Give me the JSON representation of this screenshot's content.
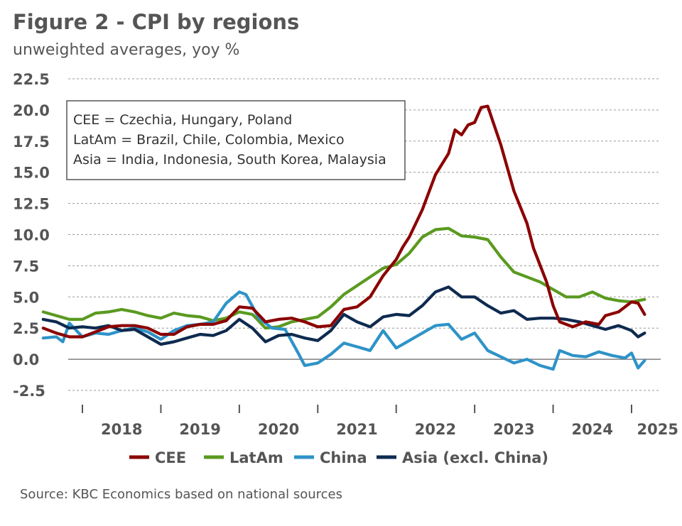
{
  "title": "Figure 2 - CPI by regions",
  "subtitle": "unweighted averages, yoy %",
  "source": "Source: KBC Economics based on national sources",
  "note_lines": [
    "CEE = Czechia, Hungary, Poland",
    "LatAm = Brazil, Chile, Colombia, Mexico",
    "Asia = India, Indonesia, South Korea, Malaysia"
  ],
  "chart_data": {
    "type": "line",
    "title": "Figure 2 - CPI by regions",
    "subtitle": "unweighted averages, yoy %",
    "ylim": [
      -2.5,
      22.5
    ],
    "yticks": [
      -2.5,
      0.0,
      2.5,
      5.0,
      7.5,
      10.0,
      12.5,
      15.0,
      17.5,
      20.0,
      22.5
    ],
    "ytick_labels": [
      "-2.5",
      "0.0",
      "2.5",
      "5.0",
      "7.5",
      "10.0",
      "12.5",
      "15.0",
      "17.5",
      "20.0",
      "22.5"
    ],
    "x_start": "2017-07",
    "x_end": "2025-01",
    "year_labels": [
      "2018",
      "2019",
      "2020",
      "2021",
      "2022",
      "2023",
      "2024",
      "2025"
    ],
    "grid": "horizontal",
    "legend": "bottom",
    "series": [
      {
        "name": "CEE",
        "color": "#8b0000",
        "points": [
          [
            "2017-07",
            2.5
          ],
          [
            "2017-09",
            2.1
          ],
          [
            "2017-11",
            1.8
          ],
          [
            "2018-01",
            1.8
          ],
          [
            "2018-03",
            2.2
          ],
          [
            "2018-05",
            2.6
          ],
          [
            "2018-07",
            2.7
          ],
          [
            "2018-09",
            2.7
          ],
          [
            "2018-11",
            2.5
          ],
          [
            "2019-01",
            2.0
          ],
          [
            "2019-03",
            2.0
          ],
          [
            "2019-05",
            2.6
          ],
          [
            "2019-07",
            2.8
          ],
          [
            "2019-09",
            2.8
          ],
          [
            "2019-11",
            3.1
          ],
          [
            "2020-01",
            4.2
          ],
          [
            "2020-03",
            4.1
          ],
          [
            "2020-05",
            3.0
          ],
          [
            "2020-07",
            3.2
          ],
          [
            "2020-09",
            3.3
          ],
          [
            "2020-11",
            3.0
          ],
          [
            "2021-01",
            2.6
          ],
          [
            "2021-03",
            2.7
          ],
          [
            "2021-05",
            4.0
          ],
          [
            "2021-07",
            4.2
          ],
          [
            "2021-09",
            5.0
          ],
          [
            "2021-11",
            6.7
          ],
          [
            "2022-01",
            8.0
          ],
          [
            "2022-02",
            9.0
          ],
          [
            "2022-03",
            9.8
          ],
          [
            "2022-05",
            12.0
          ],
          [
            "2022-07",
            14.8
          ],
          [
            "2022-09",
            16.5
          ],
          [
            "2022-10",
            18.4
          ],
          [
            "2022-11",
            18.0
          ],
          [
            "2022-12",
            18.8
          ],
          [
            "2023-01",
            19.0
          ],
          [
            "2023-02",
            20.2
          ],
          [
            "2023-03",
            20.3
          ],
          [
            "2023-05",
            17.2
          ],
          [
            "2023-07",
            13.5
          ],
          [
            "2023-09",
            10.9
          ],
          [
            "2023-10",
            8.9
          ],
          [
            "2023-12",
            6.2
          ],
          [
            "2024-01",
            4.3
          ],
          [
            "2024-02",
            3.0
          ],
          [
            "2024-04",
            2.6
          ],
          [
            "2024-06",
            3.0
          ],
          [
            "2024-08",
            2.8
          ],
          [
            "2024-09",
            3.5
          ],
          [
            "2024-11",
            3.8
          ],
          [
            "2025-01",
            4.6
          ],
          [
            "2025-02",
            4.5
          ],
          [
            "2025-03",
            3.6
          ]
        ]
      },
      {
        "name": "LatAm",
        "color": "#5a9a20",
        "points": [
          [
            "2017-07",
            3.8
          ],
          [
            "2017-09",
            3.5
          ],
          [
            "2017-11",
            3.2
          ],
          [
            "2018-01",
            3.2
          ],
          [
            "2018-03",
            3.7
          ],
          [
            "2018-05",
            3.8
          ],
          [
            "2018-07",
            4.0
          ],
          [
            "2018-09",
            3.8
          ],
          [
            "2018-11",
            3.5
          ],
          [
            "2019-01",
            3.3
          ],
          [
            "2019-03",
            3.7
          ],
          [
            "2019-05",
            3.5
          ],
          [
            "2019-07",
            3.4
          ],
          [
            "2019-09",
            3.1
          ],
          [
            "2019-11",
            3.3
          ],
          [
            "2020-01",
            3.8
          ],
          [
            "2020-03",
            3.6
          ],
          [
            "2020-05",
            2.5
          ],
          [
            "2020-07",
            2.6
          ],
          [
            "2020-09",
            3.0
          ],
          [
            "2020-11",
            3.2
          ],
          [
            "2021-01",
            3.4
          ],
          [
            "2021-03",
            4.2
          ],
          [
            "2021-05",
            5.2
          ],
          [
            "2021-07",
            5.9
          ],
          [
            "2021-09",
            6.6
          ],
          [
            "2021-11",
            7.3
          ],
          [
            "2022-01",
            7.6
          ],
          [
            "2022-03",
            8.5
          ],
          [
            "2022-05",
            9.8
          ],
          [
            "2022-07",
            10.4
          ],
          [
            "2022-09",
            10.5
          ],
          [
            "2022-11",
            9.9
          ],
          [
            "2023-01",
            9.8
          ],
          [
            "2023-03",
            9.6
          ],
          [
            "2023-05",
            8.2
          ],
          [
            "2023-07",
            7.0
          ],
          [
            "2023-09",
            6.6
          ],
          [
            "2023-11",
            6.2
          ],
          [
            "2024-01",
            5.6
          ],
          [
            "2024-03",
            5.0
          ],
          [
            "2024-05",
            5.0
          ],
          [
            "2024-07",
            5.4
          ],
          [
            "2024-09",
            4.9
          ],
          [
            "2024-11",
            4.7
          ],
          [
            "2025-01",
            4.6
          ],
          [
            "2025-03",
            4.8
          ]
        ]
      },
      {
        "name": "China",
        "color": "#2e93c8",
        "points": [
          [
            "2017-07",
            1.7
          ],
          [
            "2017-09",
            1.8
          ],
          [
            "2017-10",
            1.4
          ],
          [
            "2017-11",
            2.9
          ],
          [
            "2018-01",
            1.8
          ],
          [
            "2018-03",
            2.1
          ],
          [
            "2018-05",
            2.0
          ],
          [
            "2018-07",
            2.3
          ],
          [
            "2018-09",
            2.5
          ],
          [
            "2018-11",
            2.2
          ],
          [
            "2019-01",
            1.6
          ],
          [
            "2019-03",
            2.3
          ],
          [
            "2019-05",
            2.7
          ],
          [
            "2019-07",
            2.8
          ],
          [
            "2019-09",
            3.0
          ],
          [
            "2019-11",
            4.5
          ],
          [
            "2020-01",
            5.4
          ],
          [
            "2020-02",
            5.2
          ],
          [
            "2020-04",
            3.3
          ],
          [
            "2020-06",
            2.5
          ],
          [
            "2020-08",
            2.4
          ],
          [
            "2020-10",
            0.5
          ],
          [
            "2020-11",
            -0.5
          ],
          [
            "2021-01",
            -0.3
          ],
          [
            "2021-03",
            0.4
          ],
          [
            "2021-05",
            1.3
          ],
          [
            "2021-07",
            1.0
          ],
          [
            "2021-09",
            0.7
          ],
          [
            "2021-11",
            2.3
          ],
          [
            "2022-01",
            0.9
          ],
          [
            "2022-03",
            1.5
          ],
          [
            "2022-05",
            2.1
          ],
          [
            "2022-07",
            2.7
          ],
          [
            "2022-09",
            2.8
          ],
          [
            "2022-11",
            1.6
          ],
          [
            "2023-01",
            2.1
          ],
          [
            "2023-03",
            0.7
          ],
          [
            "2023-05",
            0.2
          ],
          [
            "2023-07",
            -0.3
          ],
          [
            "2023-09",
            0.0
          ],
          [
            "2023-11",
            -0.5
          ],
          [
            "2024-01",
            -0.8
          ],
          [
            "2024-02",
            0.7
          ],
          [
            "2024-04",
            0.3
          ],
          [
            "2024-06",
            0.2
          ],
          [
            "2024-08",
            0.6
          ],
          [
            "2024-10",
            0.3
          ],
          [
            "2024-12",
            0.1
          ],
          [
            "2025-01",
            0.5
          ],
          [
            "2025-02",
            -0.7
          ],
          [
            "2025-03",
            -0.1
          ]
        ]
      },
      {
        "name": "Asia (excl. China)",
        "color": "#0e2a4f",
        "points": [
          [
            "2017-07",
            3.2
          ],
          [
            "2017-09",
            3.0
          ],
          [
            "2017-11",
            2.5
          ],
          [
            "2018-01",
            2.6
          ],
          [
            "2018-03",
            2.5
          ],
          [
            "2018-05",
            2.7
          ],
          [
            "2018-07",
            2.3
          ],
          [
            "2018-09",
            2.4
          ],
          [
            "2018-11",
            1.8
          ],
          [
            "2019-01",
            1.2
          ],
          [
            "2019-03",
            1.4
          ],
          [
            "2019-05",
            1.7
          ],
          [
            "2019-07",
            2.0
          ],
          [
            "2019-09",
            1.9
          ],
          [
            "2019-11",
            2.3
          ],
          [
            "2020-01",
            3.2
          ],
          [
            "2020-03",
            2.5
          ],
          [
            "2020-05",
            1.4
          ],
          [
            "2020-07",
            1.9
          ],
          [
            "2020-09",
            2.0
          ],
          [
            "2020-11",
            1.7
          ],
          [
            "2021-01",
            1.5
          ],
          [
            "2021-03",
            2.3
          ],
          [
            "2021-05",
            3.6
          ],
          [
            "2021-07",
            3.0
          ],
          [
            "2021-09",
            2.6
          ],
          [
            "2021-11",
            3.4
          ],
          [
            "2022-01",
            3.6
          ],
          [
            "2022-03",
            3.5
          ],
          [
            "2022-05",
            4.3
          ],
          [
            "2022-07",
            5.4
          ],
          [
            "2022-09",
            5.8
          ],
          [
            "2022-11",
            5.0
          ],
          [
            "2023-01",
            5.0
          ],
          [
            "2023-03",
            4.3
          ],
          [
            "2023-05",
            3.7
          ],
          [
            "2023-07",
            3.9
          ],
          [
            "2023-09",
            3.2
          ],
          [
            "2023-11",
            3.3
          ],
          [
            "2024-01",
            3.3
          ],
          [
            "2024-03",
            3.2
          ],
          [
            "2024-05",
            3.0
          ],
          [
            "2024-07",
            2.7
          ],
          [
            "2024-09",
            2.4
          ],
          [
            "2024-11",
            2.7
          ],
          [
            "2025-01",
            2.3
          ],
          [
            "2025-02",
            1.8
          ],
          [
            "2025-03",
            2.1
          ]
        ]
      }
    ]
  }
}
